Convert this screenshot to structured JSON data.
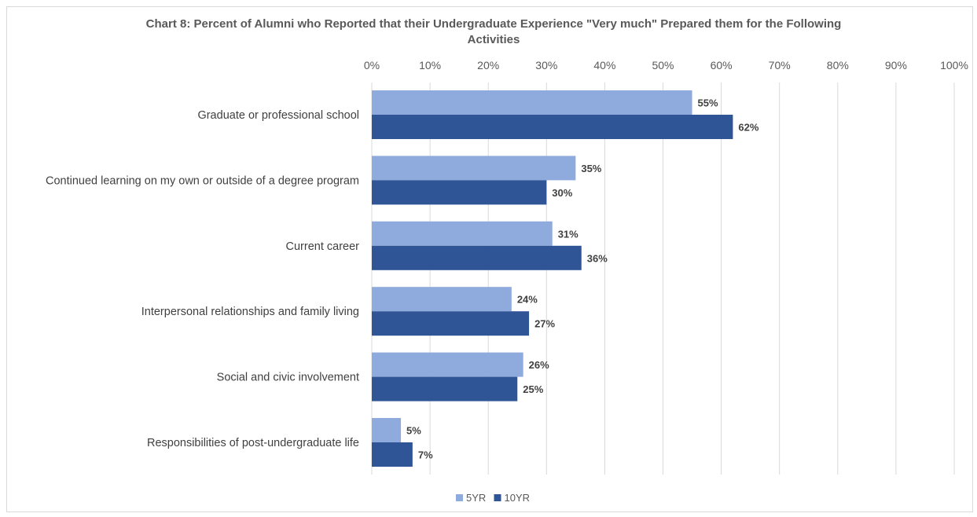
{
  "chart_data": {
    "type": "bar",
    "orientation": "horizontal",
    "title": "Chart 8: Percent of Alumni who Reported that their Undergraduate Experience \"Very much\" Prepared them for the Following Activities",
    "title_lines": [
      "Chart 8: Percent of Alumni who Reported that their Undergraduate Experience \"Very much\" Prepared them for the Following",
      "Activities"
    ],
    "categories": [
      "Graduate or professional school",
      "Continued learning on my own or outside of a degree program",
      "Current career",
      "Interpersonal relationships and family living",
      "Social and civic involvement",
      "Responsibilities of post-undergraduate life"
    ],
    "series": [
      {
        "name": "5YR",
        "values": [
          55,
          35,
          31,
          24,
          26,
          5
        ],
        "color": "#8faadc"
      },
      {
        "name": "10YR",
        "values": [
          62,
          30,
          36,
          27,
          25,
          7
        ],
        "color": "#2f5597"
      }
    ],
    "xlim": [
      0,
      100
    ],
    "ticks": [
      "0%",
      "10%",
      "20%",
      "30%",
      "40%",
      "50%",
      "60%",
      "70%",
      "80%",
      "90%",
      "100%"
    ],
    "tick_values": [
      0,
      10,
      20,
      30,
      40,
      50,
      60,
      70,
      80,
      90,
      100
    ],
    "value_suffix": "%",
    "axis_position": "top",
    "grid": true,
    "gridline_color": "#d9d9d9",
    "legend_position": "bottom"
  }
}
